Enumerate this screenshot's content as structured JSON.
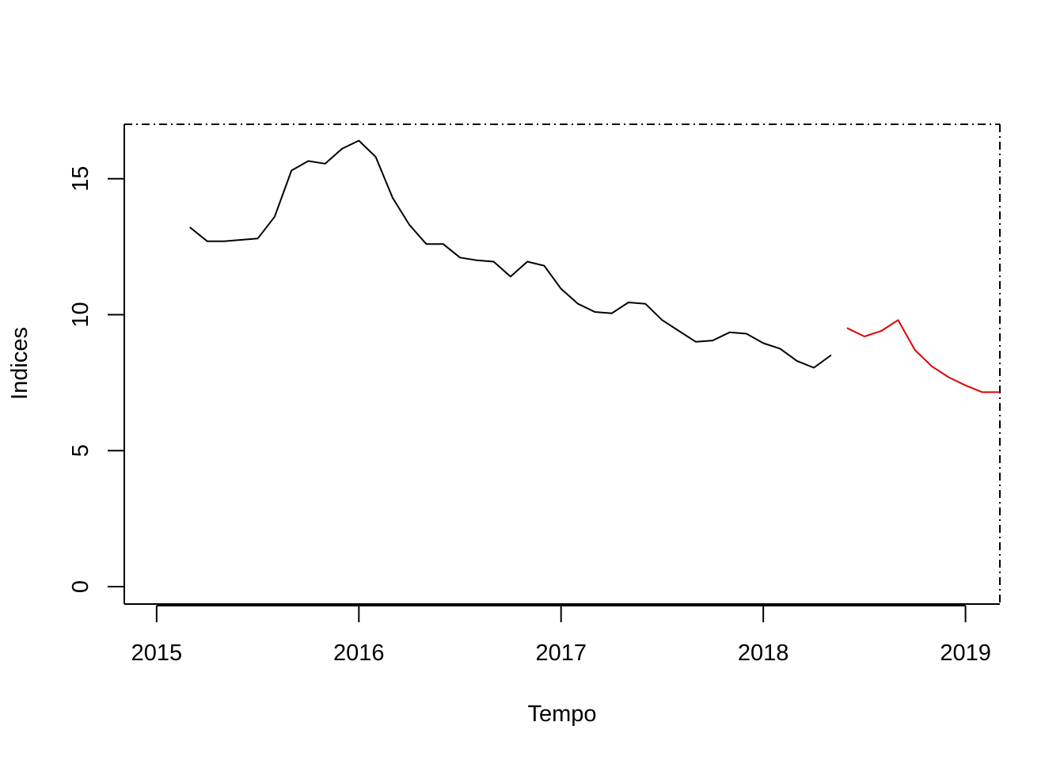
{
  "chart_data": {
    "type": "line",
    "xlabel": "Tempo",
    "ylabel": "Indices",
    "xlim": [
      2014.84,
      2019.17
    ],
    "ylim": [
      -0.64,
      17.0
    ],
    "x_ticks": [
      2015,
      2016,
      2017,
      2018,
      2019
    ],
    "x_tick_labels": [
      "2015",
      "2016",
      "2017",
      "2018",
      "2019"
    ],
    "y_ticks": [
      0,
      5,
      10,
      15
    ],
    "y_tick_labels": [
      "0",
      "5",
      "10",
      "15"
    ],
    "grid": false,
    "frame_style": "dash-dot",
    "series": [
      {
        "color": "#000000",
        "x": [
          2015.1667,
          2015.25,
          2015.3333,
          2015.4167,
          2015.5,
          2015.5833,
          2015.6667,
          2015.75,
          2015.8333,
          2015.9167,
          2016.0,
          2016.0833,
          2016.1667,
          2016.25,
          2016.3333,
          2016.4167,
          2016.5,
          2016.5833,
          2016.6667,
          2016.75,
          2016.8333,
          2016.9167,
          2017.0,
          2017.0833,
          2017.1667,
          2017.25,
          2017.3333,
          2017.4167,
          2017.5,
          2017.5833,
          2017.6667,
          2017.75,
          2017.8333,
          2017.9167,
          2018.0,
          2018.0833,
          2018.1667,
          2018.25,
          2018.3333
        ],
        "values": [
          13.2,
          12.7,
          12.7,
          12.75,
          12.8,
          13.6,
          15.3,
          15.65,
          15.55,
          16.1,
          16.4,
          15.8,
          14.3,
          13.3,
          12.6,
          12.6,
          12.1,
          12.0,
          11.95,
          11.4,
          11.95,
          11.8,
          10.95,
          10.4,
          10.1,
          10.05,
          10.45,
          10.4,
          9.8,
          9.4,
          9.0,
          9.05,
          9.35,
          9.3,
          8.95,
          8.75,
          8.3,
          8.05,
          8.5
        ]
      },
      {
        "color": "#DF0000",
        "x": [
          2018.4167,
          2018.5,
          2018.5833,
          2018.6667,
          2018.75,
          2018.8333,
          2018.9167,
          2019.0,
          2019.0833,
          2019.1667
        ],
        "values": [
          9.5,
          9.2,
          9.4,
          9.8,
          8.7,
          8.1,
          7.7,
          7.4,
          7.15,
          7.15
        ]
      }
    ]
  }
}
